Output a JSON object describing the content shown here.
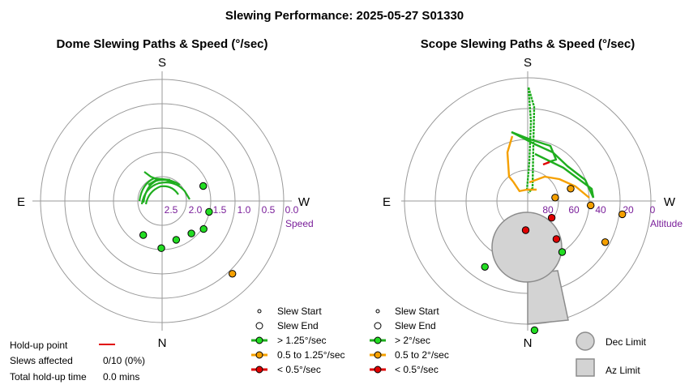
{
  "title": "Slewing Performance: 2025-05-27 S01330",
  "colors": {
    "green": "#1fae1f",
    "green_pt": "#22dd22",
    "orange": "#f5a000",
    "red": "#e00000",
    "ring": "#9a9a9a",
    "purple": "#7a1f9a",
    "limit_fill": "#d3d3d3",
    "limit_stroke": "#8c8c8c"
  },
  "dome": {
    "title": "Dome Slewing Paths & Speed (°/sec)",
    "compass": {
      "S": "S",
      "N": "N",
      "E": "E",
      "W": "W"
    },
    "ring_labels": [
      "2.5",
      "2.0",
      "1.5",
      "1.0",
      "0.5",
      "0.0"
    ],
    "axis_label": "Speed"
  },
  "scope": {
    "title": "Scope Slewing Paths & Speed (°/sec)",
    "compass": {
      "S": "S",
      "N": "N",
      "E": "E",
      "W": "W"
    },
    "ring_labels": [
      "80",
      "60",
      "40",
      "20",
      "0"
    ],
    "axis_label": "Altitude"
  },
  "dome_legend": {
    "start": "Slew Start",
    "end": "Slew End",
    "fast": "> 1.25°/sec",
    "mid": "0.5 to 1.25°/sec",
    "slow": "< 0.5°/sec"
  },
  "scope_legend": {
    "start": "Slew Start",
    "end": "Slew End",
    "fast": "> 2°/sec",
    "mid": "0.5 to 2°/sec",
    "slow": "< 0.5°/sec"
  },
  "limits": {
    "dec": "Dec Limit",
    "az": "Az Limit"
  },
  "holdup": {
    "point_label": "Hold-up point",
    "slews_label": "Slews affected",
    "slews_value": "0/10 (0%)",
    "time_label": "Total hold-up time",
    "time_value": "0.0 mins"
  },
  "chart_data": [
    {
      "type": "scatter",
      "title": "Dome Slewing Paths & Speed (°/sec)",
      "radial_axis": "Speed (°/sec)",
      "radial_ticks": [
        2.5,
        2.0,
        1.5,
        1.0,
        0.5,
        0.0
      ],
      "points": [
        {
          "az_deg": 29,
          "speed": 2.2,
          "class": "fast"
        },
        {
          "az_deg": 1,
          "speed": 2.03,
          "class": "fast"
        },
        {
          "az_deg": 340,
          "speed": 2.15,
          "class": "fast"
        },
        {
          "az_deg": 318,
          "speed": 2.1,
          "class": "fast"
        },
        {
          "az_deg": 304,
          "speed": 1.97,
          "class": "fast"
        },
        {
          "az_deg": 283,
          "speed": 2.01,
          "class": "fast"
        },
        {
          "az_deg": 250,
          "speed": 2.1,
          "class": "fast"
        },
        {
          "az_deg": 316,
          "speed": 0.92,
          "class": "mid"
        }
      ]
    },
    {
      "type": "scatter",
      "title": "Scope Slewing Paths & Speed (°/sec)",
      "radial_axis": "Altitude",
      "radial_ticks": [
        80,
        60,
        40,
        20,
        0
      ],
      "points": [
        {
          "az_deg": 357,
          "alt": 16,
          "class": "fast"
        },
        {
          "az_deg": 33,
          "alt": 49,
          "class": "fast"
        },
        {
          "az_deg": 326,
          "alt": 60,
          "class": "fast"
        },
        {
          "az_deg": 298,
          "alt": 43,
          "class": "mid"
        },
        {
          "az_deg": 323,
          "alt": 69,
          "class": "slow"
        },
        {
          "az_deg": 4,
          "alt": 81,
          "class": "slow"
        },
        {
          "az_deg": 274,
          "alt": 59,
          "class": "mid"
        },
        {
          "az_deg": 263,
          "alt": 82,
          "class": "mid"
        },
        {
          "az_deg": 254,
          "alt": 71,
          "class": "mid"
        },
        {
          "az_deg": 278,
          "alt": 38,
          "class": "mid"
        },
        {
          "az_deg": 305,
          "alt": 81,
          "class": "slow"
        }
      ]
    }
  ]
}
